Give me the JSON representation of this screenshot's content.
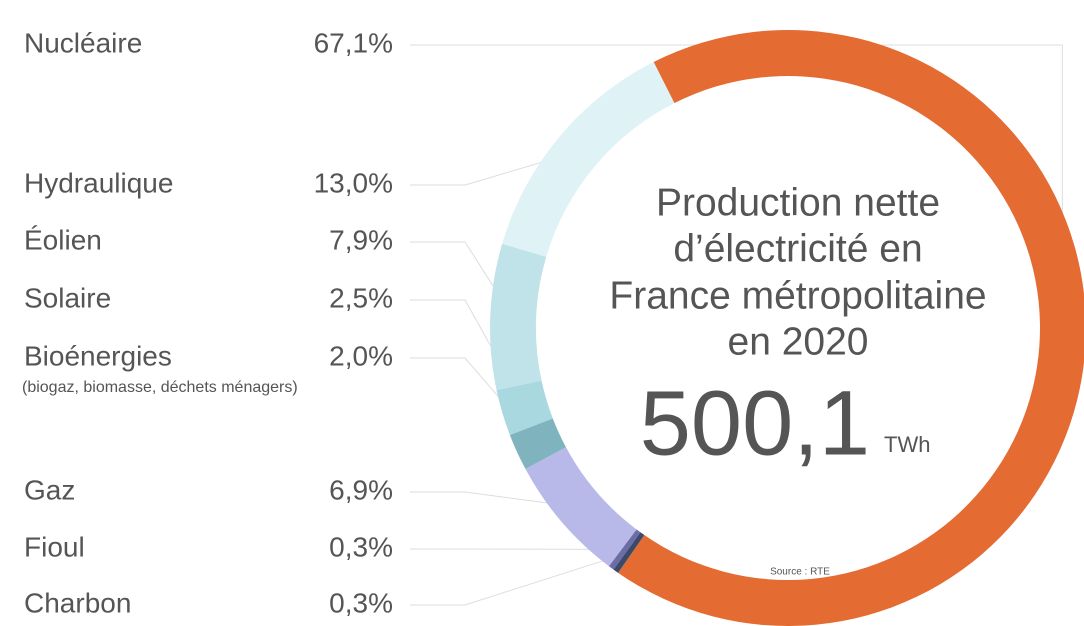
{
  "chart_data": {
    "type": "donut",
    "title_lines": [
      "Production nette",
      "d’électricité en",
      "France métropolitaine",
      "en 2020"
    ],
    "total": "500,1",
    "unit": "TWh",
    "source": "Source : RTE",
    "categories": [
      "Nucléaire",
      "Hydraulique",
      "Éolien",
      "Solaire",
      "Bioénergies",
      "Gaz",
      "Fioul",
      "Charbon"
    ],
    "notes": [
      null,
      null,
      null,
      null,
      "(biogaz, biomasse, déchets ménagers)",
      null,
      null,
      null
    ],
    "values": [
      67.1,
      13.0,
      7.9,
      2.5,
      2.0,
      6.9,
      0.3,
      0.3
    ],
    "value_labels": [
      "67,1%",
      "13,0%",
      "7,9%",
      "2,5%",
      "2,0%",
      "6,9%",
      "0,3%",
      "0,3%"
    ],
    "colors": [
      "#e46c32",
      "#dff2f5",
      "#c0e2e9",
      "#a9d8e1",
      "#7fb4be",
      "#b9b9e9",
      "#6d6da6",
      "#3c4a6a"
    ]
  }
}
